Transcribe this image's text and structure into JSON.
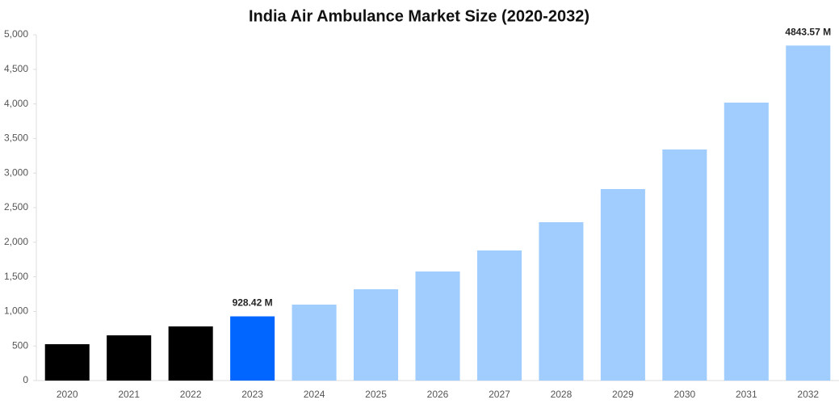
{
  "chart_data": {
    "type": "bar",
    "title": "India Air Ambulance Market Size (2020-2032)",
    "categories": [
      "2020",
      "2021",
      "2022",
      "2023",
      "2024",
      "2025",
      "2026",
      "2027",
      "2028",
      "2029",
      "2030",
      "2031",
      "2032"
    ],
    "values": [
      526,
      654,
      783,
      928.42,
      1098,
      1320,
      1577,
      1881,
      2290,
      2769,
      3341,
      4019,
      4843.57
    ],
    "value_labels": [
      null,
      null,
      null,
      "928.42 M",
      null,
      null,
      null,
      null,
      null,
      null,
      null,
      null,
      "4843.57 M"
    ],
    "colors": [
      "#000000",
      "#000000",
      "#000000",
      "#0066ff",
      "#a0cdfd",
      "#a0cdfd",
      "#a0cdfd",
      "#a0cdfd",
      "#a0cdfd",
      "#a0cdfd",
      "#a0cdfd",
      "#a0cdfd",
      "#a0cdfd"
    ],
    "ylim": [
      0,
      5000
    ],
    "yticks": [
      0,
      500,
      {
        "value": 1000,
        "label": "1,000"
      },
      {
        "value": 1500,
        "label": "1,500"
      },
      {
        "value": 2000,
        "label": "2,000"
      },
      {
        "value": 2500,
        "label": "2,500"
      },
      {
        "value": 3000,
        "label": "3,000"
      },
      {
        "value": 3500,
        "label": "3,500"
      },
      {
        "value": 4000,
        "label": "4,000"
      },
      {
        "value": 4500,
        "label": "4,500"
      },
      {
        "value": 5000,
        "label": "5,000"
      }
    ],
    "grid": false
  }
}
